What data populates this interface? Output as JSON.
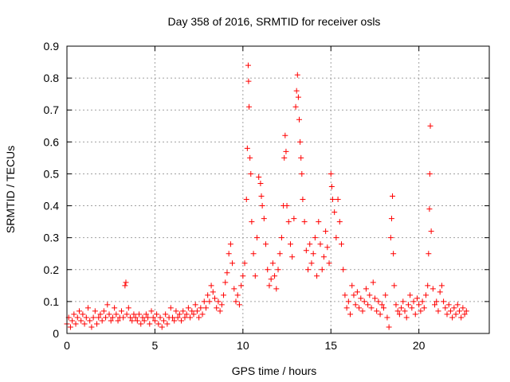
{
  "chart_data": {
    "type": "scatter",
    "title": "Day 358 of 2016, SRMTID for receiver osls",
    "xlabel": "GPS time / hours",
    "ylabel": "SRMTID / TECUs",
    "xlim": [
      0,
      24
    ],
    "ylim": [
      0,
      0.9
    ],
    "xticks": [
      0,
      5,
      10,
      15,
      20
    ],
    "xtick_labels": [
      "0",
      "5",
      "10",
      "15",
      "20"
    ],
    "yticks": [
      0,
      0.1,
      0.2,
      0.3,
      0.4,
      0.5,
      0.6,
      0.7,
      0.8,
      0.9
    ],
    "ytick_labels": [
      "0",
      "0.1",
      "0.2",
      "0.3",
      "0.4",
      "0.5",
      "0.6",
      "0.7",
      "0.8",
      "0.9"
    ],
    "grid": true,
    "marker": "+",
    "color": "#ff0000",
    "series": [
      {
        "name": "SRMTID",
        "points": [
          [
            0.0,
            0.03
          ],
          [
            0.1,
            0.05
          ],
          [
            0.2,
            0.02
          ],
          [
            0.3,
            0.04
          ],
          [
            0.4,
            0.06
          ],
          [
            0.5,
            0.03
          ],
          [
            0.6,
            0.05
          ],
          [
            0.7,
            0.07
          ],
          [
            0.8,
            0.04
          ],
          [
            0.9,
            0.06
          ],
          [
            1.0,
            0.03
          ],
          [
            1.1,
            0.05
          ],
          [
            1.2,
            0.08
          ],
          [
            1.3,
            0.04
          ],
          [
            1.4,
            0.02
          ],
          [
            1.5,
            0.05
          ],
          [
            1.6,
            0.07
          ],
          [
            1.7,
            0.03
          ],
          [
            1.8,
            0.05
          ],
          [
            1.9,
            0.06
          ],
          [
            2.0,
            0.04
          ],
          [
            2.1,
            0.07
          ],
          [
            2.2,
            0.05
          ],
          [
            2.3,
            0.09
          ],
          [
            2.4,
            0.06
          ],
          [
            2.5,
            0.04
          ],
          [
            2.6,
            0.05
          ],
          [
            2.7,
            0.08
          ],
          [
            2.8,
            0.06
          ],
          [
            2.9,
            0.04
          ],
          [
            3.0,
            0.05
          ],
          [
            3.1,
            0.07
          ],
          [
            3.2,
            0.05
          ],
          [
            3.3,
            0.15
          ],
          [
            3.35,
            0.16
          ],
          [
            3.4,
            0.06
          ],
          [
            3.5,
            0.08
          ],
          [
            3.6,
            0.05
          ],
          [
            3.7,
            0.04
          ],
          [
            3.8,
            0.06
          ],
          [
            3.9,
            0.05
          ],
          [
            4.0,
            0.04
          ],
          [
            4.1,
            0.06
          ],
          [
            4.2,
            0.03
          ],
          [
            4.3,
            0.05
          ],
          [
            4.4,
            0.04
          ],
          [
            4.5,
            0.06
          ],
          [
            4.6,
            0.05
          ],
          [
            4.7,
            0.03
          ],
          [
            4.8,
            0.07
          ],
          [
            4.9,
            0.05
          ],
          [
            5.0,
            0.04
          ],
          [
            5.1,
            0.06
          ],
          [
            5.2,
            0.03
          ],
          [
            5.3,
            0.05
          ],
          [
            5.4,
            0.02
          ],
          [
            5.5,
            0.04
          ],
          [
            5.6,
            0.06
          ],
          [
            5.7,
            0.03
          ],
          [
            5.8,
            0.05
          ],
          [
            5.9,
            0.08
          ],
          [
            6.0,
            0.05
          ],
          [
            6.1,
            0.04
          ],
          [
            6.2,
            0.07
          ],
          [
            6.3,
            0.05
          ],
          [
            6.4,
            0.06
          ],
          [
            6.5,
            0.04
          ],
          [
            6.6,
            0.07
          ],
          [
            6.7,
            0.05
          ],
          [
            6.8,
            0.06
          ],
          [
            6.9,
            0.08
          ],
          [
            7.0,
            0.05
          ],
          [
            7.1,
            0.07
          ],
          [
            7.2,
            0.06
          ],
          [
            7.3,
            0.09
          ],
          [
            7.4,
            0.07
          ],
          [
            7.5,
            0.05
          ],
          [
            7.6,
            0.08
          ],
          [
            7.7,
            0.06
          ],
          [
            7.8,
            0.1
          ],
          [
            7.9,
            0.08
          ],
          [
            8.0,
            0.12
          ],
          [
            8.1,
            0.1
          ],
          [
            8.2,
            0.15
          ],
          [
            8.3,
            0.13
          ],
          [
            8.4,
            0.11
          ],
          [
            8.5,
            0.08
          ],
          [
            8.6,
            0.1
          ],
          [
            8.7,
            0.07
          ],
          [
            8.8,
            0.09
          ],
          [
            8.9,
            0.12
          ],
          [
            9.0,
            0.16
          ],
          [
            9.1,
            0.19
          ],
          [
            9.2,
            0.25
          ],
          [
            9.3,
            0.28
          ],
          [
            9.4,
            0.22
          ],
          [
            9.5,
            0.14
          ],
          [
            9.6,
            0.1
          ],
          [
            9.7,
            0.12
          ],
          [
            9.8,
            0.09
          ],
          [
            9.9,
            0.15
          ],
          [
            10.0,
            0.18
          ],
          [
            10.1,
            0.22
          ],
          [
            10.2,
            0.42
          ],
          [
            10.25,
            0.58
          ],
          [
            10.3,
            0.84
          ],
          [
            10.32,
            0.79
          ],
          [
            10.35,
            0.71
          ],
          [
            10.4,
            0.55
          ],
          [
            10.45,
            0.5
          ],
          [
            10.5,
            0.35
          ],
          [
            10.6,
            0.25
          ],
          [
            10.7,
            0.18
          ],
          [
            10.8,
            0.3
          ],
          [
            10.9,
            0.49
          ],
          [
            11.0,
            0.47
          ],
          [
            11.05,
            0.43
          ],
          [
            11.1,
            0.4
          ],
          [
            11.2,
            0.36
          ],
          [
            11.3,
            0.28
          ],
          [
            11.4,
            0.2
          ],
          [
            11.5,
            0.15
          ],
          [
            11.6,
            0.17
          ],
          [
            11.7,
            0.22
          ],
          [
            11.8,
            0.18
          ],
          [
            11.9,
            0.14
          ],
          [
            12.0,
            0.2
          ],
          [
            12.1,
            0.25
          ],
          [
            12.2,
            0.3
          ],
          [
            12.3,
            0.4
          ],
          [
            12.35,
            0.55
          ],
          [
            12.4,
            0.62
          ],
          [
            12.45,
            0.57
          ],
          [
            12.5,
            0.4
          ],
          [
            12.6,
            0.35
          ],
          [
            12.7,
            0.28
          ],
          [
            12.8,
            0.24
          ],
          [
            12.9,
            0.36
          ],
          [
            13.0,
            0.71
          ],
          [
            13.05,
            0.76
          ],
          [
            13.1,
            0.81
          ],
          [
            13.15,
            0.74
          ],
          [
            13.2,
            0.67
          ],
          [
            13.25,
            0.6
          ],
          [
            13.3,
            0.55
          ],
          [
            13.35,
            0.5
          ],
          [
            13.4,
            0.42
          ],
          [
            13.5,
            0.35
          ],
          [
            13.6,
            0.26
          ],
          [
            13.7,
            0.2
          ],
          [
            13.8,
            0.28
          ],
          [
            13.9,
            0.22
          ],
          [
            14.0,
            0.25
          ],
          [
            14.1,
            0.3
          ],
          [
            14.2,
            0.18
          ],
          [
            14.3,
            0.35
          ],
          [
            14.4,
            0.28
          ],
          [
            14.5,
            0.2
          ],
          [
            14.6,
            0.24
          ],
          [
            14.7,
            0.32
          ],
          [
            14.8,
            0.27
          ],
          [
            14.9,
            0.22
          ],
          [
            15.0,
            0.5
          ],
          [
            15.05,
            0.46
          ],
          [
            15.1,
            0.42
          ],
          [
            15.2,
            0.38
          ],
          [
            15.3,
            0.3
          ],
          [
            15.4,
            0.42
          ],
          [
            15.5,
            0.35
          ],
          [
            15.6,
            0.28
          ],
          [
            15.7,
            0.2
          ],
          [
            15.8,
            0.12
          ],
          [
            15.9,
            0.08
          ],
          [
            16.0,
            0.1
          ],
          [
            16.1,
            0.06
          ],
          [
            16.2,
            0.15
          ],
          [
            16.3,
            0.12
          ],
          [
            16.4,
            0.09
          ],
          [
            16.5,
            0.13
          ],
          [
            16.6,
            0.08
          ],
          [
            16.7,
            0.11
          ],
          [
            16.8,
            0.07
          ],
          [
            16.9,
            0.1
          ],
          [
            17.0,
            0.14
          ],
          [
            17.1,
            0.09
          ],
          [
            17.2,
            0.12
          ],
          [
            17.3,
            0.08
          ],
          [
            17.4,
            0.16
          ],
          [
            17.5,
            0.11
          ],
          [
            17.6,
            0.07
          ],
          [
            17.7,
            0.1
          ],
          [
            17.8,
            0.06
          ],
          [
            17.9,
            0.09
          ],
          [
            18.0,
            0.08
          ],
          [
            18.1,
            0.12
          ],
          [
            18.2,
            0.05
          ],
          [
            18.3,
            0.02
          ],
          [
            18.4,
            0.3
          ],
          [
            18.45,
            0.36
          ],
          [
            18.5,
            0.43
          ],
          [
            18.55,
            0.25
          ],
          [
            18.6,
            0.15
          ],
          [
            18.7,
            0.09
          ],
          [
            18.8,
            0.07
          ],
          [
            18.9,
            0.06
          ],
          [
            19.0,
            0.08
          ],
          [
            19.1,
            0.1
          ],
          [
            19.2,
            0.07
          ],
          [
            19.3,
            0.05
          ],
          [
            19.4,
            0.09
          ],
          [
            19.5,
            0.12
          ],
          [
            19.6,
            0.08
          ],
          [
            19.7,
            0.1
          ],
          [
            19.8,
            0.06
          ],
          [
            19.9,
            0.11
          ],
          [
            20.0,
            0.09
          ],
          [
            20.1,
            0.07
          ],
          [
            20.2,
            0.1
          ],
          [
            20.3,
            0.08
          ],
          [
            20.4,
            0.12
          ],
          [
            20.5,
            0.15
          ],
          [
            20.55,
            0.25
          ],
          [
            20.6,
            0.39
          ],
          [
            20.62,
            0.5
          ],
          [
            20.65,
            0.65
          ],
          [
            20.7,
            0.32
          ],
          [
            20.8,
            0.14
          ],
          [
            20.9,
            0.09
          ],
          [
            21.0,
            0.1
          ],
          [
            21.1,
            0.07
          ],
          [
            21.2,
            0.13
          ],
          [
            21.3,
            0.15
          ],
          [
            21.4,
            0.1
          ],
          [
            21.5,
            0.08
          ],
          [
            21.6,
            0.06
          ],
          [
            21.7,
            0.09
          ],
          [
            21.8,
            0.07
          ],
          [
            21.9,
            0.05
          ],
          [
            22.0,
            0.08
          ],
          [
            22.1,
            0.06
          ],
          [
            22.2,
            0.09
          ],
          [
            22.3,
            0.07
          ],
          [
            22.4,
            0.05
          ],
          [
            22.5,
            0.08
          ],
          [
            22.6,
            0.06
          ],
          [
            22.7,
            0.07
          ]
        ]
      }
    ]
  }
}
